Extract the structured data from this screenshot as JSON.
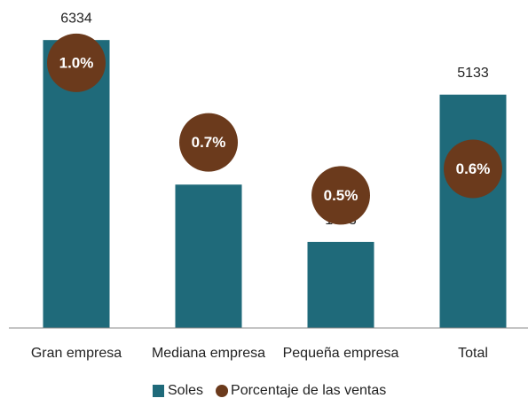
{
  "chart_data": {
    "type": "bar",
    "categories": [
      "Gran empresa",
      "Mediana empresa",
      "Pequeña empresa",
      "Total"
    ],
    "series": [
      {
        "name": "Soles",
        "color": "#1f6a7a",
        "values": [
          6334,
          3154,
          1893,
          5133
        ]
      },
      {
        "name": "Porcentaje de las ventas",
        "color": "#6b3a1c",
        "axis": "y2",
        "values": [
          1.0,
          0.7,
          0.5,
          0.6
        ],
        "value_labels": [
          "1.0%",
          "0.7%",
          "0.5%",
          "0.6%"
        ]
      }
    ],
    "ylim": [
      0,
      7000
    ],
    "y2lim": [
      0,
      1.2
    ],
    "legend": "bottom"
  }
}
